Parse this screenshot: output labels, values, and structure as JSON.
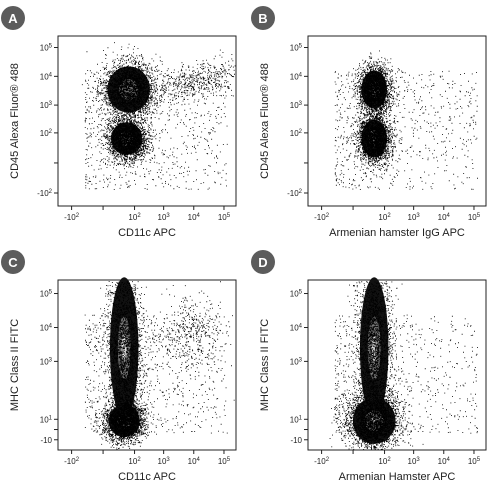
{
  "chart_data": [
    {
      "panel_label": "A",
      "type": "scatter",
      "subtype": "flow cytometry density dot plot",
      "xlabel": "CD11c APC",
      "ylabel": "CD45 Alexa Fluor® 488",
      "x_scale": "biexponential",
      "y_scale": "biexponential",
      "x_ticks": [
        "-10^2",
        "0",
        "10^2",
        "10^3",
        "10^4",
        "10^5"
      ],
      "y_ticks": [
        "-10^2",
        "0",
        "10^2",
        "10^3",
        "10^4",
        "10^5"
      ],
      "xlim": [
        -300,
        250000
      ],
      "ylim": [
        -300,
        250000
      ],
      "populations": [
        {
          "x": 60,
          "y": 3500,
          "density": "high",
          "spread": "wide"
        },
        {
          "x": 50,
          "y": 60,
          "density": "high",
          "spread": "medium"
        },
        {
          "x": 12000,
          "y": 7000,
          "density": "medium",
          "spread": "diagonal tail"
        }
      ],
      "grid": false
    },
    {
      "panel_label": "B",
      "type": "scatter",
      "subtype": "flow cytometry density dot plot",
      "xlabel": "Armenian hamster IgG APC",
      "ylabel": "CD45 Alexa Fluor® 488",
      "x_scale": "biexponential",
      "y_scale": "biexponential",
      "x_ticks": [
        "-10^2",
        "0",
        "10^2",
        "10^3",
        "10^4",
        "10^5"
      ],
      "y_ticks": [
        "-10^2",
        "0",
        "10^2",
        "10^3",
        "10^4",
        "10^5"
      ],
      "xlim": [
        -300,
        250000
      ],
      "ylim": [
        -300,
        250000
      ],
      "populations": [
        {
          "x": 40,
          "y": 3500,
          "density": "high",
          "spread": "narrow"
        },
        {
          "x": 40,
          "y": 60,
          "density": "high",
          "spread": "narrow"
        }
      ],
      "grid": false
    },
    {
      "panel_label": "C",
      "type": "scatter",
      "subtype": "flow cytometry density dot plot",
      "xlabel": "CD11c APC",
      "ylabel": "MHC Class II FITC",
      "x_scale": "biexponential",
      "y_scale": "biexponential",
      "x_ticks": [
        "-10^2",
        "0",
        "10^2",
        "10^3",
        "10^4",
        "10^5"
      ],
      "y_ticks": [
        "-10",
        "0",
        "10^1",
        "10^3",
        "10^4",
        "10^5"
      ],
      "xlim": [
        -300,
        250000
      ],
      "ylim": [
        -30,
        250000
      ],
      "populations": [
        {
          "x": 40,
          "y": 2500,
          "density": "high",
          "spread": "tall vertical"
        },
        {
          "x": 40,
          "y": 8,
          "density": "high",
          "spread": "medium"
        },
        {
          "x": 8000,
          "y": 6000,
          "density": "low",
          "spread": "diffuse"
        }
      ],
      "grid": false
    },
    {
      "panel_label": "D",
      "type": "scatter",
      "subtype": "flow cytometry density dot plot",
      "xlabel": "Armenian Hamster APC",
      "ylabel": "MHC Class II FITC",
      "x_scale": "biexponential",
      "y_scale": "biexponential",
      "x_ticks": [
        "-10^2",
        "0",
        "10^2",
        "10^3",
        "10^4",
        "10^5"
      ],
      "y_ticks": [
        "-10",
        "0",
        "10^1",
        "10^3",
        "10^4",
        "10^5"
      ],
      "xlim": [
        -300,
        250000
      ],
      "ylim": [
        -30,
        250000
      ],
      "populations": [
        {
          "x": 40,
          "y": 2500,
          "density": "high",
          "spread": "tall vertical"
        },
        {
          "x": 40,
          "y": 8,
          "density": "high",
          "spread": "wide"
        }
      ],
      "grid": false
    }
  ]
}
